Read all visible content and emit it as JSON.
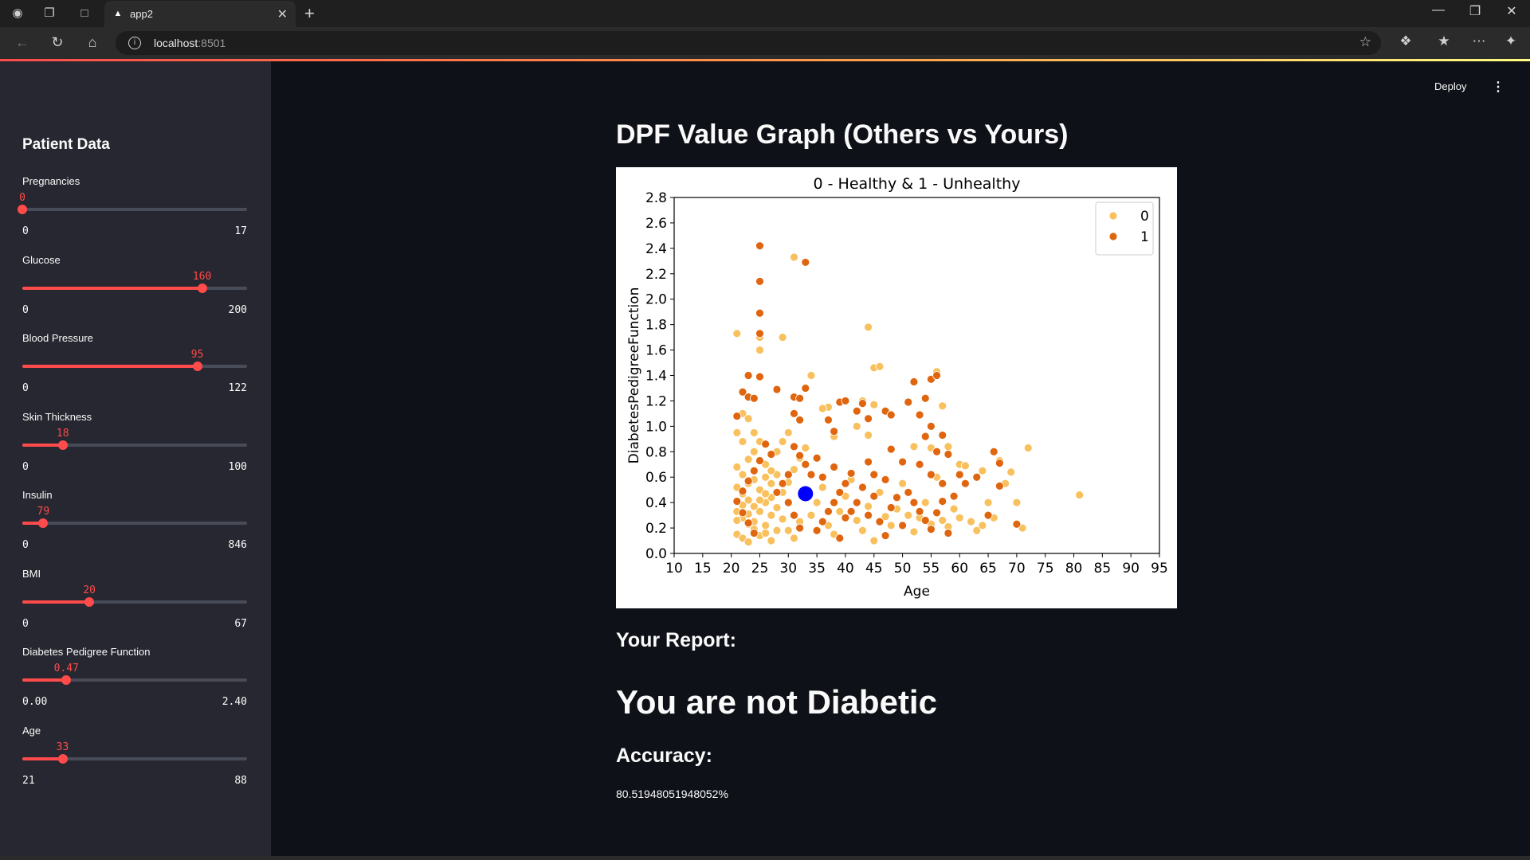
{
  "browser": {
    "tab_title": "app2",
    "url_host": "localhost",
    "url_port": ":8501"
  },
  "header": {
    "deploy_label": "Deploy"
  },
  "sidebar": {
    "title": "Patient Data",
    "sliders": [
      {
        "label": "Pregnancies",
        "value": 0,
        "value_text": "0",
        "min": 0,
        "max": 17,
        "min_text": "0",
        "max_text": "17"
      },
      {
        "label": "Glucose",
        "value": 160,
        "value_text": "160",
        "min": 0,
        "max": 200,
        "min_text": "0",
        "max_text": "200"
      },
      {
        "label": "Blood Pressure",
        "value": 95,
        "value_text": "95",
        "min": 0,
        "max": 122,
        "min_text": "0",
        "max_text": "122"
      },
      {
        "label": "Skin Thickness",
        "value": 18,
        "value_text": "18",
        "min": 0,
        "max": 100,
        "min_text": "0",
        "max_text": "100"
      },
      {
        "label": "Insulin",
        "value": 79,
        "value_text": "79",
        "min": 0,
        "max": 846,
        "min_text": "0",
        "max_text": "846"
      },
      {
        "label": "BMI",
        "value": 20,
        "value_text": "20",
        "min": 0,
        "max": 67,
        "min_text": "0",
        "max_text": "67"
      },
      {
        "label": "Diabetes Pedigree Function",
        "value": 0.47,
        "value_text": "0.47",
        "min": 0,
        "max": 2.4,
        "min_text": "0.00",
        "max_text": "2.40"
      },
      {
        "label": "Age",
        "value": 33,
        "value_text": "33",
        "min": 21,
        "max": 88,
        "min_text": "21",
        "max_text": "88"
      }
    ]
  },
  "main": {
    "heading": "DPF Value Graph (Others vs Yours)",
    "report_heading": "Your Report:",
    "result": "You are not Diabetic",
    "accuracy_heading": "Accuracy:",
    "accuracy_value": "80.51948051948052%"
  },
  "chart_data": {
    "type": "scatter",
    "title": "0 - Healthy & 1 - Unhealthy",
    "xlabel": "Age",
    "ylabel": "DiabetesPedigreeFunction",
    "xlim": [
      10,
      95
    ],
    "ylim": [
      0,
      2.8
    ],
    "xticks": [
      "10",
      "15",
      "20",
      "25",
      "30",
      "35",
      "40",
      "45",
      "50",
      "55",
      "60",
      "65",
      "70",
      "75",
      "80",
      "85",
      "90",
      "95"
    ],
    "yticks": [
      "0.0",
      "0.2",
      "0.4",
      "0.6",
      "0.8",
      "1.0",
      "1.2",
      "1.4",
      "1.6",
      "1.8",
      "2.0",
      "2.2",
      "2.4",
      "2.6",
      "2.8"
    ],
    "legend_position": "top-right",
    "series": [
      {
        "name": "0",
        "color": "#f9c05e",
        "points": [
          [
            21,
            1.73
          ],
          [
            25,
            1.7
          ],
          [
            25,
            1.6
          ],
          [
            29,
            1.7
          ],
          [
            31,
            2.33
          ],
          [
            34,
            1.4
          ],
          [
            44,
            1.78
          ],
          [
            45,
            1.46
          ],
          [
            46,
            1.47
          ],
          [
            56,
            1.43
          ],
          [
            57,
            1.16
          ],
          [
            43,
            1.2
          ],
          [
            42,
            1.0
          ],
          [
            44,
            0.93
          ],
          [
            45,
            1.17
          ],
          [
            38,
            0.92
          ],
          [
            37,
            1.15
          ],
          [
            36,
            1.14
          ],
          [
            52,
            0.84
          ],
          [
            55,
            0.83
          ],
          [
            58,
            0.84
          ],
          [
            60,
            0.7
          ],
          [
            61,
            0.69
          ],
          [
            64,
            0.65
          ],
          [
            67,
            0.73
          ],
          [
            69,
            0.64
          ],
          [
            72,
            0.83
          ],
          [
            68,
            0.55
          ],
          [
            70,
            0.4
          ],
          [
            71,
            0.2
          ],
          [
            81,
            0.46
          ],
          [
            22,
            1.1
          ],
          [
            23,
            1.06
          ],
          [
            21,
            0.95
          ],
          [
            22,
            0.88
          ],
          [
            24,
            0.8
          ],
          [
            23,
            0.74
          ],
          [
            21,
            0.68
          ],
          [
            22,
            0.62
          ],
          [
            24,
            0.58
          ],
          [
            21,
            0.52
          ],
          [
            22,
            0.47
          ],
          [
            23,
            0.42
          ],
          [
            24,
            0.37
          ],
          [
            21,
            0.33
          ],
          [
            22,
            0.28
          ],
          [
            23,
            0.23
          ],
          [
            24,
            0.19
          ],
          [
            21,
            0.15
          ],
          [
            22,
            0.12
          ],
          [
            23,
            0.09
          ],
          [
            25,
            0.14
          ],
          [
            26,
            0.22
          ],
          [
            27,
            0.3
          ],
          [
            26,
            0.4
          ],
          [
            25,
            0.5
          ],
          [
            27,
            0.55
          ],
          [
            28,
            0.62
          ],
          [
            26,
            0.7
          ],
          [
            28,
            0.8
          ],
          [
            29,
            0.88
          ],
          [
            30,
            0.95
          ],
          [
            27,
            0.44
          ],
          [
            28,
            0.36
          ],
          [
            29,
            0.27
          ],
          [
            30,
            0.18
          ],
          [
            31,
            0.12
          ],
          [
            29,
            0.48
          ],
          [
            30,
            0.56
          ],
          [
            31,
            0.66
          ],
          [
            32,
            0.75
          ],
          [
            33,
            0.83
          ],
          [
            32,
            0.25
          ],
          [
            34,
            0.3
          ],
          [
            35,
            0.4
          ],
          [
            36,
            0.52
          ],
          [
            37,
            0.22
          ],
          [
            38,
            0.15
          ],
          [
            39,
            0.33
          ],
          [
            40,
            0.45
          ],
          [
            41,
            0.58
          ],
          [
            42,
            0.26
          ],
          [
            43,
            0.18
          ],
          [
            44,
            0.37
          ],
          [
            45,
            0.1
          ],
          [
            46,
            0.48
          ],
          [
            47,
            0.29
          ],
          [
            48,
            0.22
          ],
          [
            49,
            0.35
          ],
          [
            50,
            0.55
          ],
          [
            51,
            0.3
          ],
          [
            52,
            0.17
          ],
          [
            53,
            0.28
          ],
          [
            54,
            0.4
          ],
          [
            55,
            0.23
          ],
          [
            56,
            0.6
          ],
          [
            57,
            0.26
          ],
          [
            58,
            0.21
          ],
          [
            59,
            0.35
          ],
          [
            60,
            0.28
          ],
          [
            62,
            0.25
          ],
          [
            63,
            0.18
          ],
          [
            64,
            0.22
          ],
          [
            66,
            0.28
          ],
          [
            65,
            0.4
          ],
          [
            24,
            0.95
          ],
          [
            25,
            0.88
          ],
          [
            26,
            0.6
          ],
          [
            23,
            0.55
          ],
          [
            25,
            0.33
          ],
          [
            24,
            0.25
          ],
          [
            26,
            0.16
          ],
          [
            27,
            0.1
          ],
          [
            28,
            0.18
          ],
          [
            22,
            0.38
          ],
          [
            21,
            0.26
          ],
          [
            23,
            0.31
          ],
          [
            25,
            0.42
          ],
          [
            26,
            0.47
          ],
          [
            27,
            0.65
          ]
        ]
      },
      {
        "name": "1",
        "color": "#e0650f",
        "points": [
          [
            25,
            2.42
          ],
          [
            25,
            2.14
          ],
          [
            25,
            1.89
          ],
          [
            25,
            1.73
          ],
          [
            33,
            2.29
          ],
          [
            23,
            1.4
          ],
          [
            25,
            1.39
          ],
          [
            28,
            1.29
          ],
          [
            22,
            1.27
          ],
          [
            23,
            1.23
          ],
          [
            24,
            1.22
          ],
          [
            31,
            1.23
          ],
          [
            32,
            1.22
          ],
          [
            33,
            1.3
          ],
          [
            31,
            1.1
          ],
          [
            32,
            1.05
          ],
          [
            21,
            1.08
          ],
          [
            37,
            1.05
          ],
          [
            38,
            0.96
          ],
          [
            39,
            1.19
          ],
          [
            40,
            1.2
          ],
          [
            43,
            1.18
          ],
          [
            42,
            1.12
          ],
          [
            44,
            1.06
          ],
          [
            47,
            1.12
          ],
          [
            48,
            1.09
          ],
          [
            51,
            1.19
          ],
          [
            52,
            1.35
          ],
          [
            53,
            1.09
          ],
          [
            55,
            1.37
          ],
          [
            56,
            1.4
          ],
          [
            54,
            1.22
          ],
          [
            55,
            1.0
          ],
          [
            54,
            0.92
          ],
          [
            57,
            0.93
          ],
          [
            56,
            0.8
          ],
          [
            58,
            0.78
          ],
          [
            60,
            0.62
          ],
          [
            61,
            0.55
          ],
          [
            63,
            0.6
          ],
          [
            66,
            0.8
          ],
          [
            67,
            0.71
          ],
          [
            67,
            0.53
          ],
          [
            65,
            0.3
          ],
          [
            70,
            0.23
          ],
          [
            59,
            0.45
          ],
          [
            57,
            0.55
          ],
          [
            55,
            0.62
          ],
          [
            53,
            0.7
          ],
          [
            50,
            0.72
          ],
          [
            48,
            0.82
          ],
          [
            47,
            0.58
          ],
          [
            45,
            0.62
          ],
          [
            44,
            0.72
          ],
          [
            43,
            0.52
          ],
          [
            41,
            0.63
          ],
          [
            40,
            0.55
          ],
          [
            39,
            0.48
          ],
          [
            38,
            0.4
          ],
          [
            37,
            0.33
          ],
          [
            36,
            0.25
          ],
          [
            35,
            0.18
          ],
          [
            34,
            0.62
          ],
          [
            33,
            0.7
          ],
          [
            32,
            0.77
          ],
          [
            31,
            0.84
          ],
          [
            30,
            0.62
          ],
          [
            29,
            0.55
          ],
          [
            28,
            0.48
          ],
          [
            27,
            0.78
          ],
          [
            26,
            0.86
          ],
          [
            25,
            0.73
          ],
          [
            24,
            0.65
          ],
          [
            23,
            0.57
          ],
          [
            22,
            0.49
          ],
          [
            21,
            0.41
          ],
          [
            22,
            0.32
          ],
          [
            23,
            0.24
          ],
          [
            24,
            0.16
          ],
          [
            42,
            0.4
          ],
          [
            44,
            0.3
          ],
          [
            46,
            0.25
          ],
          [
            48,
            0.36
          ],
          [
            49,
            0.44
          ],
          [
            50,
            0.22
          ],
          [
            51,
            0.48
          ],
          [
            52,
            0.4
          ],
          [
            53,
            0.33
          ],
          [
            54,
            0.26
          ],
          [
            55,
            0.19
          ],
          [
            56,
            0.32
          ],
          [
            57,
            0.41
          ],
          [
            58,
            0.16
          ],
          [
            41,
            0.33
          ],
          [
            45,
            0.45
          ],
          [
            47,
            0.14
          ],
          [
            39,
            0.12
          ],
          [
            40,
            0.28
          ],
          [
            38,
            0.68
          ],
          [
            36,
            0.6
          ],
          [
            35,
            0.75
          ],
          [
            30,
            0.4
          ],
          [
            31,
            0.3
          ],
          [
            32,
            0.2
          ]
        ]
      },
      {
        "name": "",
        "color": "#0000ff",
        "points": [
          [
            33,
            0.47
          ]
        ]
      }
    ]
  }
}
